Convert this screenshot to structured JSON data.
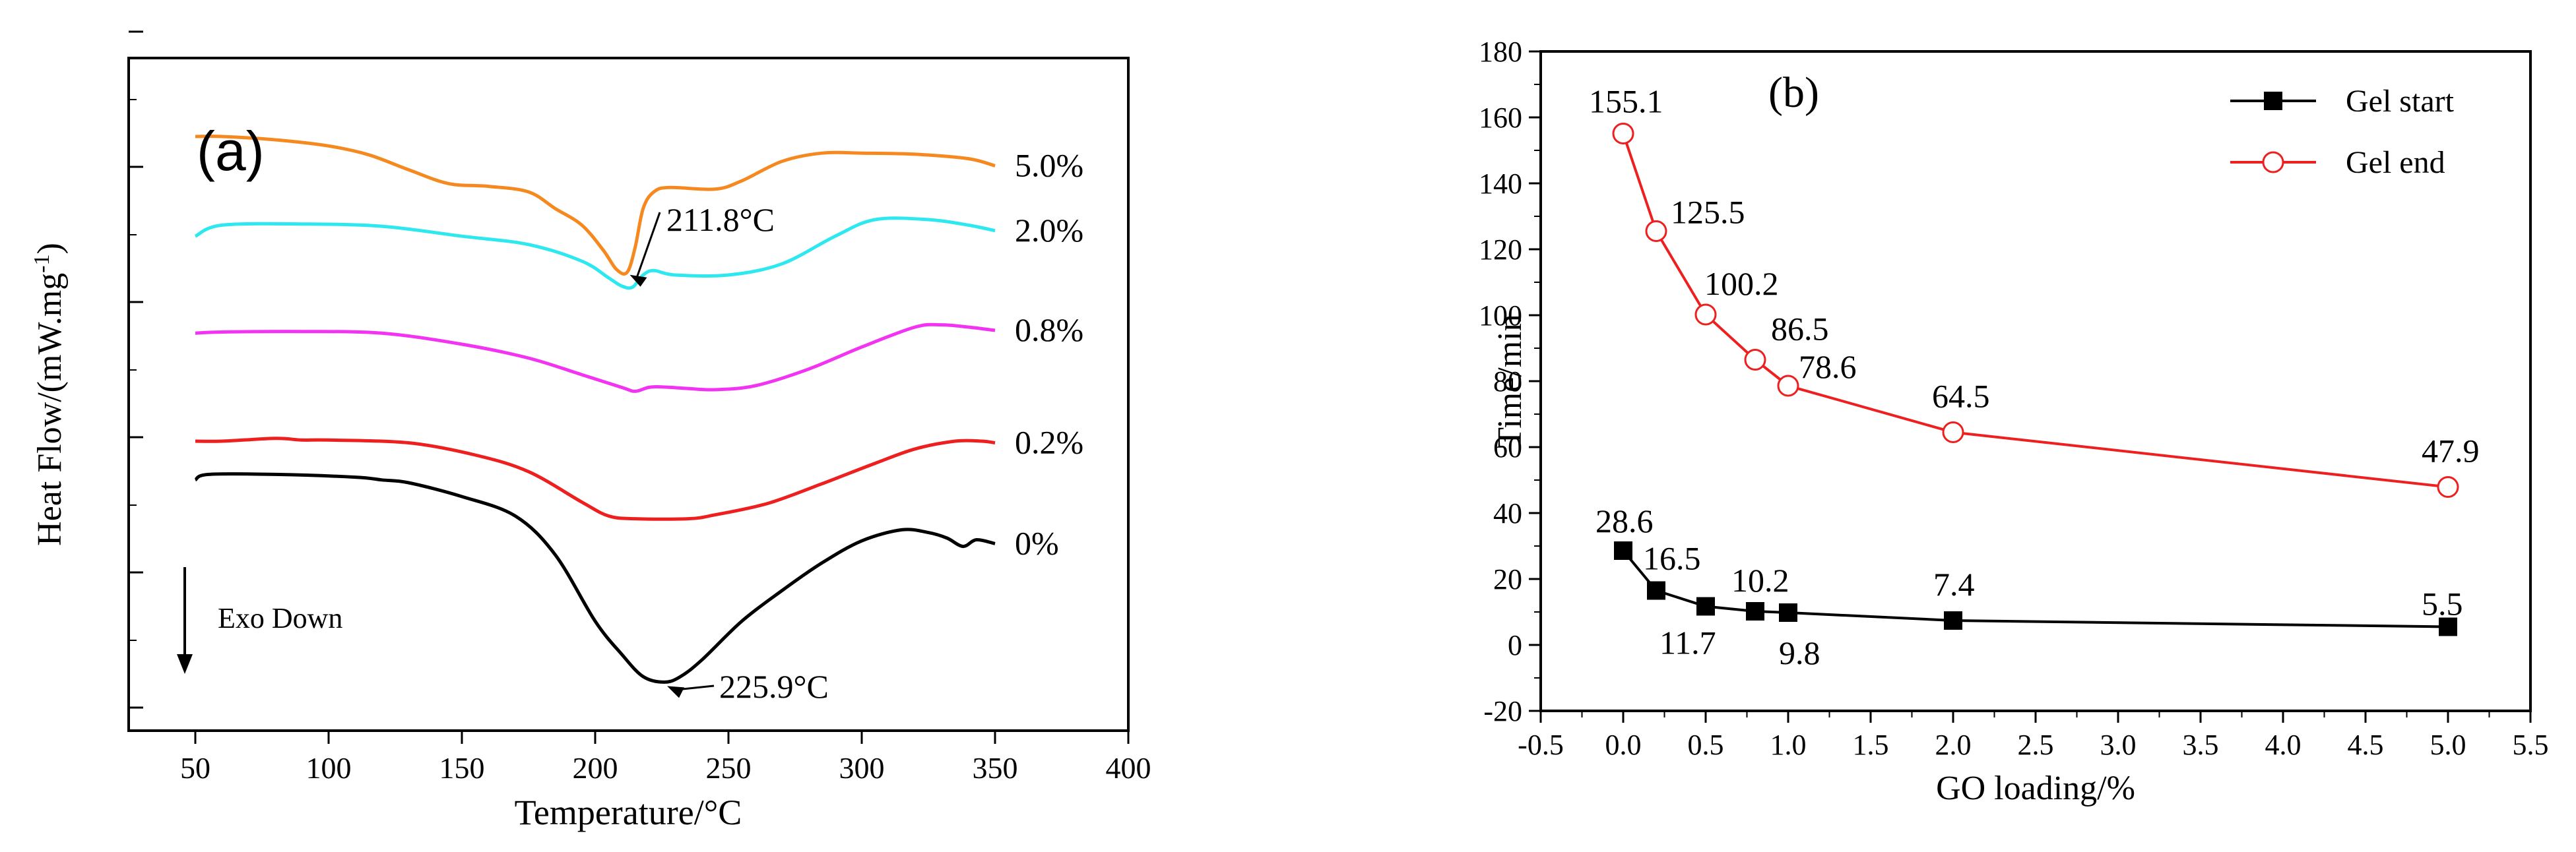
{
  "chart_data": [
    {
      "id": "a",
      "type": "line",
      "panel_label": "(a)",
      "xlabel": "Temperature/°C",
      "ylabel": "Heat Flow/(mW.mg",
      "ylabel_sup": "-1",
      "ylabel_close": ")",
      "xlim": [
        25,
        400
      ],
      "xticks": [
        "50",
        "100",
        "150",
        "200",
        "250",
        "300",
        "350",
        "400"
      ],
      "y_tick_labels_shown": false,
      "series": [
        {
          "name": "5.0%",
          "label": "5.0%",
          "color": "#F5891F",
          "x": [
            50,
            60,
            80,
            100,
            115,
            130,
            145,
            160,
            175,
            185,
            195,
            203,
            208,
            212,
            215,
            218,
            222,
            228,
            245,
            255,
            270,
            285,
            300,
            320,
            340,
            350
          ],
          "y": [
            9.5,
            9.5,
            9.44,
            9.33,
            9.17,
            8.9,
            8.65,
            8.6,
            8.5,
            8.2,
            7.9,
            7.45,
            7.1,
            7.05,
            7.5,
            8.2,
            8.5,
            8.58,
            8.55,
            8.7,
            9.05,
            9.2,
            9.2,
            9.18,
            9.1,
            8.97
          ]
        },
        {
          "name": "2.0%",
          "label": "2.0%",
          "color": "#2EE8F0",
          "x": [
            50,
            60,
            90,
            120,
            150,
            175,
            195,
            205,
            210,
            214,
            218,
            222,
            230,
            250,
            270,
            290,
            305,
            325,
            340,
            350
          ],
          "y": [
            7.7,
            7.9,
            7.92,
            7.88,
            7.7,
            7.55,
            7.25,
            6.95,
            6.8,
            6.78,
            7.0,
            7.08,
            7.0,
            7.0,
            7.2,
            7.7,
            8.0,
            8.0,
            7.9,
            7.8
          ]
        },
        {
          "name": "0.8%",
          "label": "0.8%",
          "color": "#F233F2",
          "x": [
            50,
            60,
            90,
            120,
            150,
            175,
            195,
            210,
            215,
            220,
            225,
            235,
            245,
            260,
            280,
            300,
            320,
            330,
            340,
            350
          ],
          "y": [
            5.95,
            5.97,
            5.98,
            5.95,
            5.75,
            5.5,
            5.2,
            4.97,
            4.9,
            4.97,
            4.98,
            4.95,
            4.93,
            5.0,
            5.3,
            5.7,
            6.06,
            6.1,
            6.06,
            6.0
          ]
        },
        {
          "name": "0.2%",
          "label": "0.2%",
          "color": "#EE1F1F",
          "x": [
            50,
            60,
            80,
            90,
            100,
            130,
            155,
            175,
            195,
            205,
            215,
            235,
            245,
            265,
            285,
            305,
            320,
            335,
            345,
            350
          ],
          "y": [
            4.0,
            4.0,
            4.05,
            4.02,
            4.02,
            3.97,
            3.75,
            3.45,
            2.9,
            2.65,
            2.6,
            2.6,
            2.67,
            2.88,
            3.23,
            3.6,
            3.86,
            4.0,
            4.0,
            3.97
          ]
        },
        {
          "name": "0%",
          "label": "0%",
          "color": "#000000",
          "x": [
            50,
            55,
            80,
            110,
            120,
            130,
            150,
            170,
            185,
            200,
            210,
            218,
            226,
            232,
            240,
            255,
            270,
            285,
            300,
            315,
            325,
            332,
            338,
            343,
            350
          ],
          "y": [
            3.3,
            3.4,
            3.4,
            3.35,
            3.3,
            3.25,
            3.0,
            2.65,
            1.95,
            0.75,
            0.15,
            -0.25,
            -0.35,
            -0.25,
            0.05,
            0.75,
            1.3,
            1.8,
            2.2,
            2.4,
            2.35,
            2.25,
            2.1,
            2.22,
            2.15
          ]
        }
      ],
      "annotations": [
        {
          "text": "211.8°C",
          "point": [
            212,
            7.05
          ]
        },
        {
          "text": "225.9°C",
          "point": [
            226,
            -0.35
          ]
        },
        {
          "text": "Exo Down",
          "direction": "down"
        }
      ]
    },
    {
      "id": "b",
      "type": "line",
      "panel_label": "(b)",
      "xlabel": "GO loading/%",
      "ylabel": "Time/min",
      "xlim": [
        -0.5,
        5.5
      ],
      "ylim": [
        -20,
        180
      ],
      "xticks": [
        "-0.5",
        "0.0",
        "0.5",
        "1.0",
        "1.5",
        "2.0",
        "2.5",
        "3.0",
        "3.5",
        "4.0",
        "4.5",
        "5.0",
        "5.5"
      ],
      "yticks": [
        "-20",
        "0",
        "20",
        "40",
        "60",
        "80",
        "100",
        "120",
        "140",
        "160",
        "180"
      ],
      "legend_position": "top-right",
      "series": [
        {
          "name": "Gel start",
          "color": "#000000",
          "marker": "filled-square",
          "x": [
            0.0,
            0.2,
            0.5,
            0.8,
            1.0,
            2.0,
            5.0
          ],
          "y": [
            28.6,
            16.5,
            11.7,
            10.2,
            9.8,
            7.4,
            5.5
          ],
          "labels": [
            "28.6",
            "16.5",
            "11.7",
            "10.2",
            "9.8",
            "7.4",
            "5.5"
          ]
        },
        {
          "name": "Gel end",
          "color": "#EE1F1F",
          "marker": "open-circle",
          "x": [
            0.0,
            0.2,
            0.5,
            0.8,
            1.0,
            2.0,
            5.0
          ],
          "y": [
            155.1,
            125.5,
            100.2,
            86.5,
            78.6,
            64.5,
            47.9
          ],
          "labels": [
            "155.1",
            "125.5",
            "100.2",
            "86.5",
            "78.6",
            "64.5",
            "47.9"
          ]
        }
      ]
    }
  ]
}
